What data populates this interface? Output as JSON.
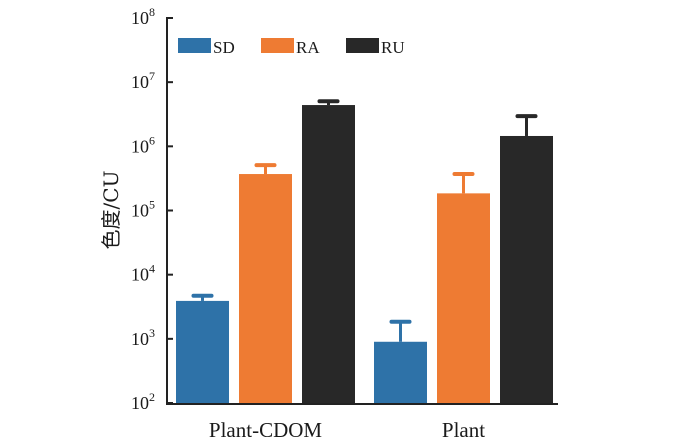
{
  "chart_data": {
    "type": "bar",
    "title": "",
    "xlabel": "",
    "ylabel": "色度/CU",
    "yscale": "log",
    "ylim": [
      100,
      100000000
    ],
    "yticks": [
      {
        "base": "10",
        "exp": "2",
        "value": 100
      },
      {
        "base": "10",
        "exp": "3",
        "value": 1000
      },
      {
        "base": "10",
        "exp": "4",
        "value": 10000
      },
      {
        "base": "10",
        "exp": "5",
        "value": 100000
      },
      {
        "base": "10",
        "exp": "6",
        "value": 1000000
      },
      {
        "base": "10",
        "exp": "7",
        "value": 10000000
      },
      {
        "base": "10",
        "exp": "8",
        "value": 100000000
      }
    ],
    "categories": [
      "Plant-CDOM",
      "Plant"
    ],
    "series": [
      {
        "name": "SD",
        "color": "#2e72a8",
        "values": [
          3900,
          900
        ],
        "errors": [
          800,
          950
        ]
      },
      {
        "name": "RA",
        "color": "#ee7b33",
        "values": [
          370000,
          185000
        ],
        "errors": [
          140000,
          185000
        ]
      },
      {
        "name": "RU",
        "color": "#282828",
        "values": [
          4400000,
          1450000
        ],
        "errors": [
          650000,
          1500000
        ]
      }
    ],
    "legend": {
      "position": "top-left",
      "orientation": "horizontal"
    },
    "grid": false,
    "error_bars": "upper"
  }
}
